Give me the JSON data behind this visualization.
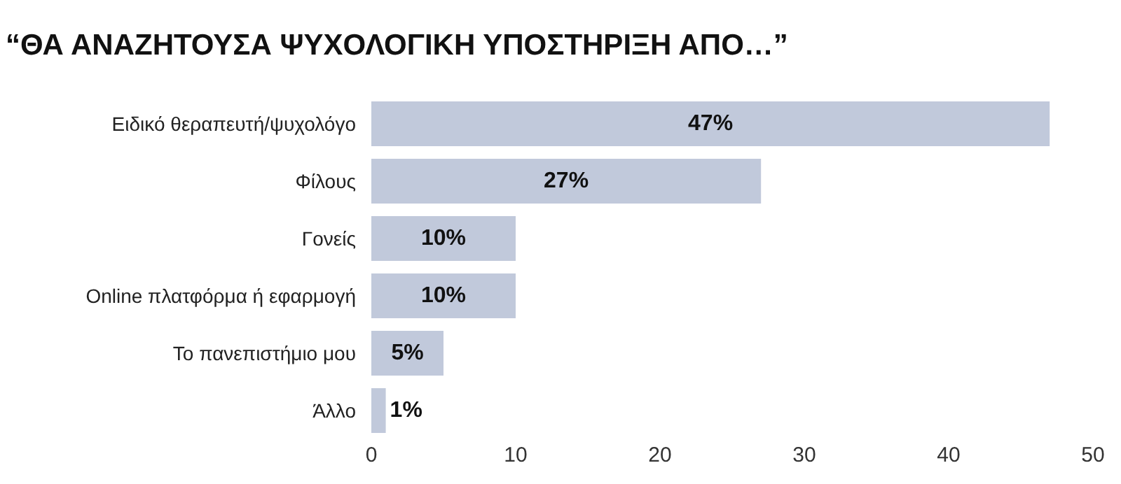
{
  "chart_data": {
    "type": "bar",
    "orientation": "horizontal",
    "title": "“ΘΑ ΑΝΑΖΗΤΟΥΣΑ ΨΥΧΟΛΟΓΙΚΗ ΥΠΟΣΤΗΡΙΞΗ ΑΠΟ…”",
    "categories": [
      "Ειδικό θεραπευτή/ψυχολόγο",
      "Φίλους",
      "Γονείς",
      "Online πλατφόρμα ή εφαρμογή",
      "Το πανεπιστήμιο μου",
      "Άλλο"
    ],
    "values": [
      47,
      27,
      10,
      10,
      5,
      1
    ],
    "value_labels": [
      "47%",
      "27%",
      "10%",
      "10%",
      "5%",
      "1%"
    ],
    "color": "#c1c9db",
    "xlim": [
      0,
      50
    ],
    "xticks": [
      0,
      10,
      20,
      30,
      40,
      50
    ]
  }
}
